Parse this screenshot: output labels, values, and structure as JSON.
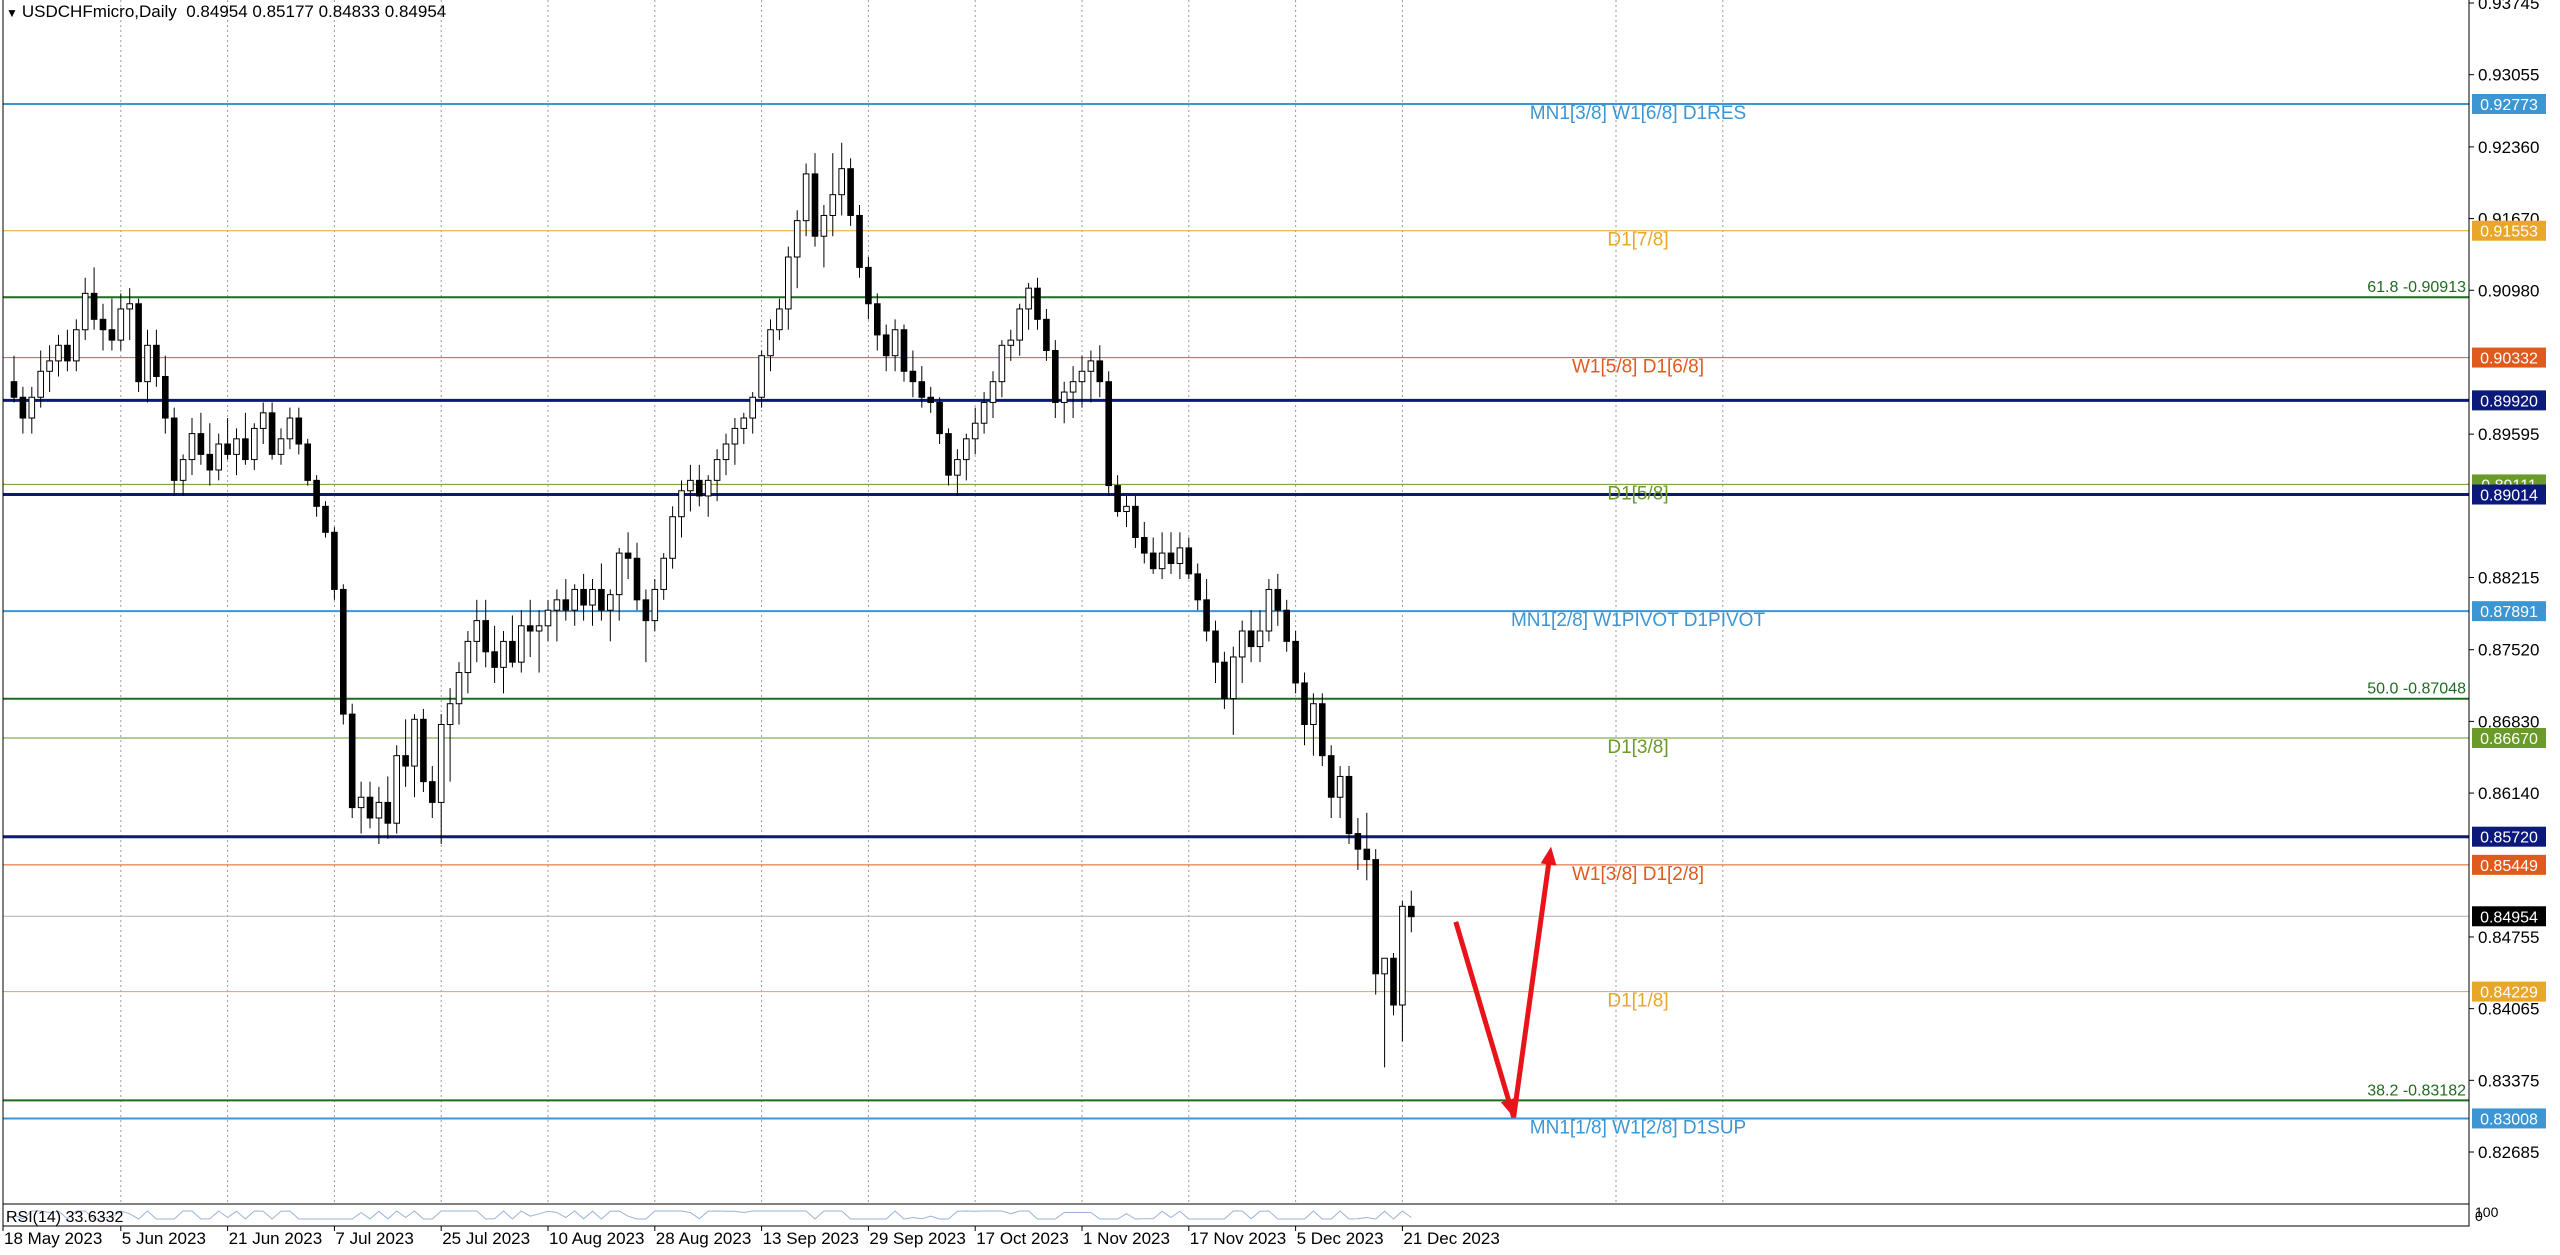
{
  "header": {
    "symbol_timeframe": "USDCHFmicro,Daily",
    "ohlc": "0.84954 0.85177 0.84833 0.84954"
  },
  "rsi_label": "RSI(14) 33.6332",
  "rsi_scale": {
    "top": "100",
    "bottom": "0"
  },
  "chart_data": {
    "type": "candlestick",
    "symbol": "USDCHFmicro",
    "timeframe": "Daily",
    "ohlc_last": {
      "open": 0.84954,
      "high": 0.85177,
      "low": 0.84833,
      "close": 0.84954
    },
    "x_ticks": [
      {
        "i": 0,
        "label": "18 May 2023"
      },
      {
        "i": 12,
        "label": "5 Jun 2023"
      },
      {
        "i": 24,
        "label": "21 Jun 2023"
      },
      {
        "i": 36,
        "label": "7 Jul 2023"
      },
      {
        "i": 48,
        "label": "25 Jul 2023"
      },
      {
        "i": 60,
        "label": "10 Aug 2023"
      },
      {
        "i": 72,
        "label": "28 Aug 2023"
      },
      {
        "i": 84,
        "label": "13 Sep 2023"
      },
      {
        "i": 96,
        "label": "29 Sep 2023"
      },
      {
        "i": 108,
        "label": "17 Oct 2023"
      },
      {
        "i": 120,
        "label": "1 Nov 2023"
      },
      {
        "i": 132,
        "label": "17 Nov 2023"
      },
      {
        "i": 144,
        "label": "5 Dec 2023"
      },
      {
        "i": 156,
        "label": "21 Dec 2023"
      }
    ],
    "y_ticks": [
      "0.93745",
      "0.93055",
      "0.92360",
      "0.91670",
      "0.90980",
      "0.89595",
      "0.88215",
      "0.87520",
      "0.86830",
      "0.86140",
      "0.84755",
      "0.84065",
      "0.83375",
      "0.82685"
    ],
    "ylim": [
      0.8205,
      0.9375
    ],
    "levels": [
      {
        "price": 0.92773,
        "label": "MN1[3/8] W1[6/8] D1RES",
        "color": "#3d96d4",
        "tag": "0.92773",
        "width": 2
      },
      {
        "price": 0.91553,
        "label": "D1[7/8]",
        "color": "#e8a72a",
        "tag": "0.91553",
        "width": 1
      },
      {
        "price": 0.90913,
        "label": "61.8 -0.90913",
        "color": "#1f6b1f",
        "tag": "",
        "width": 2
      },
      {
        "price": 0.90332,
        "label": "W1[5/8] D1[6/8]",
        "color": "#e05a1e",
        "tag": "0.90332",
        "width": 1
      },
      {
        "price": 0.8992,
        "label": "",
        "color": "#0b1a7a",
        "tag": "0.89920",
        "width": 3
      },
      {
        "price": 0.89111,
        "label": "D1[5/8]",
        "color": "#6a9a2a",
        "tag": "0.89111",
        "width": 1
      },
      {
        "price": 0.89014,
        "label": "",
        "color": "#0b1a7a",
        "tag": "0.89014",
        "width": 3
      },
      {
        "price": 0.87891,
        "label": "MN1[2/8] W1PIVOT D1PIVOT",
        "color": "#3d96d4",
        "tag": "0.87891",
        "width": 2
      },
      {
        "price": 0.87048,
        "label": "50.0 -0.87048",
        "color": "#1f6b1f",
        "tag": "",
        "width": 2
      },
      {
        "price": 0.8667,
        "label": "D1[3/8]",
        "color": "#6a9a2a",
        "tag": "0.86670",
        "width": 1
      },
      {
        "price": 0.8572,
        "label": "",
        "color": "#0b1a7a",
        "tag": "0.85720",
        "width": 3
      },
      {
        "price": 0.85449,
        "label": "W1[3/8] D1[2/8]",
        "color": "#e05a1e",
        "tag": "0.85449",
        "width": 1
      },
      {
        "price": 0.84229,
        "label": "D1[1/8]",
        "color": "#e8a72a",
        "tag": "0.84229",
        "width": 1
      },
      {
        "price": 0.83182,
        "label": "38.2 -0.83182",
        "color": "#1f6b1f",
        "tag": "",
        "width": 2
      },
      {
        "price": 0.83008,
        "label": "MN1[1/8] W1[2/8] D1SUP",
        "color": "#3d96d4",
        "tag": "0.83008",
        "width": 2
      }
    ],
    "current_price": {
      "price": 0.84954,
      "tag": "0.84954"
    },
    "candles": [
      [
        0.901,
        0.9035,
        0.899,
        0.8995
      ],
      [
        0.8995,
        0.9005,
        0.896,
        0.8975
      ],
      [
        0.8975,
        0.9005,
        0.896,
        0.8995
      ],
      [
        0.8995,
        0.904,
        0.8985,
        0.902
      ],
      [
        0.902,
        0.9045,
        0.9,
        0.903
      ],
      [
        0.903,
        0.9055,
        0.9015,
        0.9045
      ],
      [
        0.9045,
        0.906,
        0.902,
        0.903
      ],
      [
        0.903,
        0.907,
        0.902,
        0.906
      ],
      [
        0.906,
        0.911,
        0.905,
        0.9095
      ],
      [
        0.9095,
        0.912,
        0.906,
        0.907
      ],
      [
        0.907,
        0.9085,
        0.904,
        0.906
      ],
      [
        0.906,
        0.909,
        0.904,
        0.905
      ],
      [
        0.905,
        0.9095,
        0.904,
        0.908
      ],
      [
        0.908,
        0.91,
        0.905,
        0.9085
      ],
      [
        0.9085,
        0.909,
        0.9,
        0.901
      ],
      [
        0.901,
        0.906,
        0.899,
        0.9045
      ],
      [
        0.9045,
        0.906,
        0.9005,
        0.9015
      ],
      [
        0.9015,
        0.9035,
        0.896,
        0.8975
      ],
      [
        0.8975,
        0.8985,
        0.89,
        0.8915
      ],
      [
        0.8915,
        0.894,
        0.89,
        0.8935
      ],
      [
        0.8935,
        0.8975,
        0.892,
        0.896
      ],
      [
        0.896,
        0.898,
        0.893,
        0.894
      ],
      [
        0.894,
        0.897,
        0.891,
        0.8925
      ],
      [
        0.8925,
        0.896,
        0.8915,
        0.895
      ],
      [
        0.895,
        0.8975,
        0.8935,
        0.894
      ],
      [
        0.894,
        0.8965,
        0.892,
        0.8955
      ],
      [
        0.8955,
        0.898,
        0.893,
        0.8935
      ],
      [
        0.8935,
        0.897,
        0.8925,
        0.8965
      ],
      [
        0.8965,
        0.899,
        0.895,
        0.898
      ],
      [
        0.898,
        0.899,
        0.8935,
        0.894
      ],
      [
        0.894,
        0.8965,
        0.893,
        0.8955
      ],
      [
        0.8955,
        0.8985,
        0.8945,
        0.8975
      ],
      [
        0.8975,
        0.8985,
        0.894,
        0.895
      ],
      [
        0.895,
        0.8955,
        0.891,
        0.8915
      ],
      [
        0.8915,
        0.892,
        0.888,
        0.889
      ],
      [
        0.889,
        0.8895,
        0.886,
        0.8865
      ],
      [
        0.8865,
        0.887,
        0.88,
        0.881
      ],
      [
        0.881,
        0.8815,
        0.868,
        0.869
      ],
      [
        0.869,
        0.87,
        0.859,
        0.86
      ],
      [
        0.86,
        0.8625,
        0.8575,
        0.861
      ],
      [
        0.861,
        0.8625,
        0.858,
        0.859
      ],
      [
        0.859,
        0.862,
        0.8565,
        0.8605
      ],
      [
        0.8605,
        0.863,
        0.857,
        0.8585
      ],
      [
        0.8585,
        0.866,
        0.8575,
        0.865
      ],
      [
        0.865,
        0.8685,
        0.862,
        0.864
      ],
      [
        0.864,
        0.869,
        0.861,
        0.8685
      ],
      [
        0.8685,
        0.8695,
        0.8615,
        0.8625
      ],
      [
        0.8625,
        0.864,
        0.859,
        0.8605
      ],
      [
        0.8605,
        0.869,
        0.8565,
        0.868
      ],
      [
        0.868,
        0.8715,
        0.8625,
        0.87
      ],
      [
        0.87,
        0.874,
        0.868,
        0.873
      ],
      [
        0.873,
        0.877,
        0.871,
        0.876
      ],
      [
        0.876,
        0.88,
        0.874,
        0.878
      ],
      [
        0.878,
        0.88,
        0.8735,
        0.875
      ],
      [
        0.875,
        0.8775,
        0.872,
        0.8735
      ],
      [
        0.8735,
        0.877,
        0.871,
        0.876
      ],
      [
        0.876,
        0.8785,
        0.8735,
        0.874
      ],
      [
        0.874,
        0.879,
        0.873,
        0.8775
      ],
      [
        0.8775,
        0.88,
        0.8745,
        0.877
      ],
      [
        0.877,
        0.879,
        0.873,
        0.8775
      ],
      [
        0.8775,
        0.88,
        0.876,
        0.879
      ],
      [
        0.879,
        0.881,
        0.876,
        0.88
      ],
      [
        0.88,
        0.882,
        0.878,
        0.879
      ],
      [
        0.879,
        0.8815,
        0.8775,
        0.881
      ],
      [
        0.881,
        0.8825,
        0.878,
        0.8795
      ],
      [
        0.8795,
        0.882,
        0.8775,
        0.881
      ],
      [
        0.881,
        0.8835,
        0.878,
        0.879
      ],
      [
        0.879,
        0.881,
        0.876,
        0.8805
      ],
      [
        0.8805,
        0.885,
        0.878,
        0.8845
      ],
      [
        0.8845,
        0.8865,
        0.882,
        0.884
      ],
      [
        0.884,
        0.8855,
        0.879,
        0.88
      ],
      [
        0.88,
        0.881,
        0.874,
        0.878
      ],
      [
        0.878,
        0.882,
        0.877,
        0.881
      ],
      [
        0.881,
        0.8845,
        0.88,
        0.884
      ],
      [
        0.884,
        0.889,
        0.883,
        0.888
      ],
      [
        0.888,
        0.8915,
        0.886,
        0.8905
      ],
      [
        0.8905,
        0.893,
        0.8885,
        0.8915
      ],
      [
        0.8915,
        0.893,
        0.889,
        0.89
      ],
      [
        0.89,
        0.892,
        0.888,
        0.8915
      ],
      [
        0.8915,
        0.8945,
        0.8895,
        0.8935
      ],
      [
        0.8935,
        0.896,
        0.892,
        0.895
      ],
      [
        0.895,
        0.8975,
        0.893,
        0.8965
      ],
      [
        0.8965,
        0.898,
        0.895,
        0.8975
      ],
      [
        0.8975,
        0.9,
        0.896,
        0.8995
      ],
      [
        0.8995,
        0.904,
        0.8985,
        0.9035
      ],
      [
        0.9035,
        0.907,
        0.902,
        0.906
      ],
      [
        0.906,
        0.909,
        0.905,
        0.908
      ],
      [
        0.908,
        0.914,
        0.906,
        0.913
      ],
      [
        0.913,
        0.9175,
        0.91,
        0.9165
      ],
      [
        0.9165,
        0.922,
        0.915,
        0.921
      ],
      [
        0.921,
        0.923,
        0.914,
        0.915
      ],
      [
        0.915,
        0.918,
        0.912,
        0.917
      ],
      [
        0.917,
        0.923,
        0.915,
        0.919
      ],
      [
        0.919,
        0.924,
        0.917,
        0.9215
      ],
      [
        0.9215,
        0.9225,
        0.916,
        0.917
      ],
      [
        0.917,
        0.918,
        0.911,
        0.912
      ],
      [
        0.912,
        0.913,
        0.907,
        0.9085
      ],
      [
        0.9085,
        0.9095,
        0.904,
        0.9055
      ],
      [
        0.9055,
        0.9065,
        0.902,
        0.9035
      ],
      [
        0.9035,
        0.907,
        0.902,
        0.906
      ],
      [
        0.906,
        0.9065,
        0.901,
        0.902
      ],
      [
        0.902,
        0.904,
        0.8995,
        0.901
      ],
      [
        0.901,
        0.9025,
        0.8985,
        0.8995
      ],
      [
        0.8995,
        0.9005,
        0.898,
        0.899
      ],
      [
        0.899,
        0.8995,
        0.895,
        0.896
      ],
      [
        0.896,
        0.8965,
        0.891,
        0.892
      ],
      [
        0.892,
        0.8945,
        0.89,
        0.8935
      ],
      [
        0.8935,
        0.896,
        0.8915,
        0.8955
      ],
      [
        0.8955,
        0.8985,
        0.894,
        0.897
      ],
      [
        0.897,
        0.9,
        0.896,
        0.899
      ],
      [
        0.899,
        0.902,
        0.8975,
        0.901
      ],
      [
        0.901,
        0.905,
        0.8995,
        0.9045
      ],
      [
        0.9045,
        0.906,
        0.903,
        0.905
      ],
      [
        0.905,
        0.9085,
        0.9035,
        0.908
      ],
      [
        0.908,
        0.9105,
        0.906,
        0.91
      ],
      [
        0.91,
        0.911,
        0.906,
        0.907
      ],
      [
        0.907,
        0.908,
        0.903,
        0.904
      ],
      [
        0.904,
        0.905,
        0.8975,
        0.899
      ],
      [
        0.899,
        0.901,
        0.897,
        0.9
      ],
      [
        0.9,
        0.9025,
        0.8975,
        0.901
      ],
      [
        0.901,
        0.9035,
        0.8985,
        0.902
      ],
      [
        0.902,
        0.904,
        0.899,
        0.903
      ],
      [
        0.903,
        0.9045,
        0.8995,
        0.901
      ],
      [
        0.901,
        0.902,
        0.89,
        0.891
      ],
      [
        0.891,
        0.892,
        0.888,
        0.8885
      ],
      [
        0.8885,
        0.89,
        0.887,
        0.889
      ],
      [
        0.889,
        0.89,
        0.885,
        0.886
      ],
      [
        0.886,
        0.8875,
        0.8835,
        0.8845
      ],
      [
        0.8845,
        0.886,
        0.8825,
        0.883
      ],
      [
        0.883,
        0.8865,
        0.882,
        0.8845
      ],
      [
        0.8845,
        0.8865,
        0.8825,
        0.8835
      ],
      [
        0.8835,
        0.8865,
        0.882,
        0.885
      ],
      [
        0.885,
        0.886,
        0.882,
        0.8825
      ],
      [
        0.8825,
        0.8835,
        0.879,
        0.88
      ],
      [
        0.88,
        0.882,
        0.876,
        0.877
      ],
      [
        0.877,
        0.878,
        0.872,
        0.874
      ],
      [
        0.874,
        0.875,
        0.8695,
        0.8705
      ],
      [
        0.8705,
        0.8755,
        0.867,
        0.8745
      ],
      [
        0.8745,
        0.878,
        0.872,
        0.877
      ],
      [
        0.877,
        0.879,
        0.874,
        0.8755
      ],
      [
        0.8755,
        0.879,
        0.874,
        0.877
      ],
      [
        0.877,
        0.882,
        0.876,
        0.881
      ],
      [
        0.881,
        0.8825,
        0.8775,
        0.879
      ],
      [
        0.879,
        0.88,
        0.875,
        0.876
      ],
      [
        0.876,
        0.877,
        0.871,
        0.872
      ],
      [
        0.872,
        0.873,
        0.866,
        0.868
      ],
      [
        0.868,
        0.871,
        0.865,
        0.87
      ],
      [
        0.87,
        0.871,
        0.864,
        0.865
      ],
      [
        0.865,
        0.866,
        0.859,
        0.861
      ],
      [
        0.861,
        0.864,
        0.859,
        0.863
      ],
      [
        0.863,
        0.864,
        0.8565,
        0.8575
      ],
      [
        0.8575,
        0.859,
        0.854,
        0.856
      ],
      [
        0.856,
        0.8595,
        0.853,
        0.855
      ],
      [
        0.855,
        0.856,
        0.842,
        0.844
      ],
      [
        0.844,
        0.8455,
        0.835,
        0.8455
      ],
      [
        0.8455,
        0.846,
        0.84,
        0.841
      ],
      [
        0.841,
        0.851,
        0.8375,
        0.8505
      ],
      [
        0.8505,
        0.852,
        0.848,
        0.8495
      ]
    ],
    "arrow": {
      "from": {
        "i": 162,
        "price": 0.849
      },
      "via": {
        "i": 168.5,
        "price": 0.8302
      },
      "to": {
        "i": 172.5,
        "price": 0.855
      },
      "color": "#e8141a"
    }
  }
}
